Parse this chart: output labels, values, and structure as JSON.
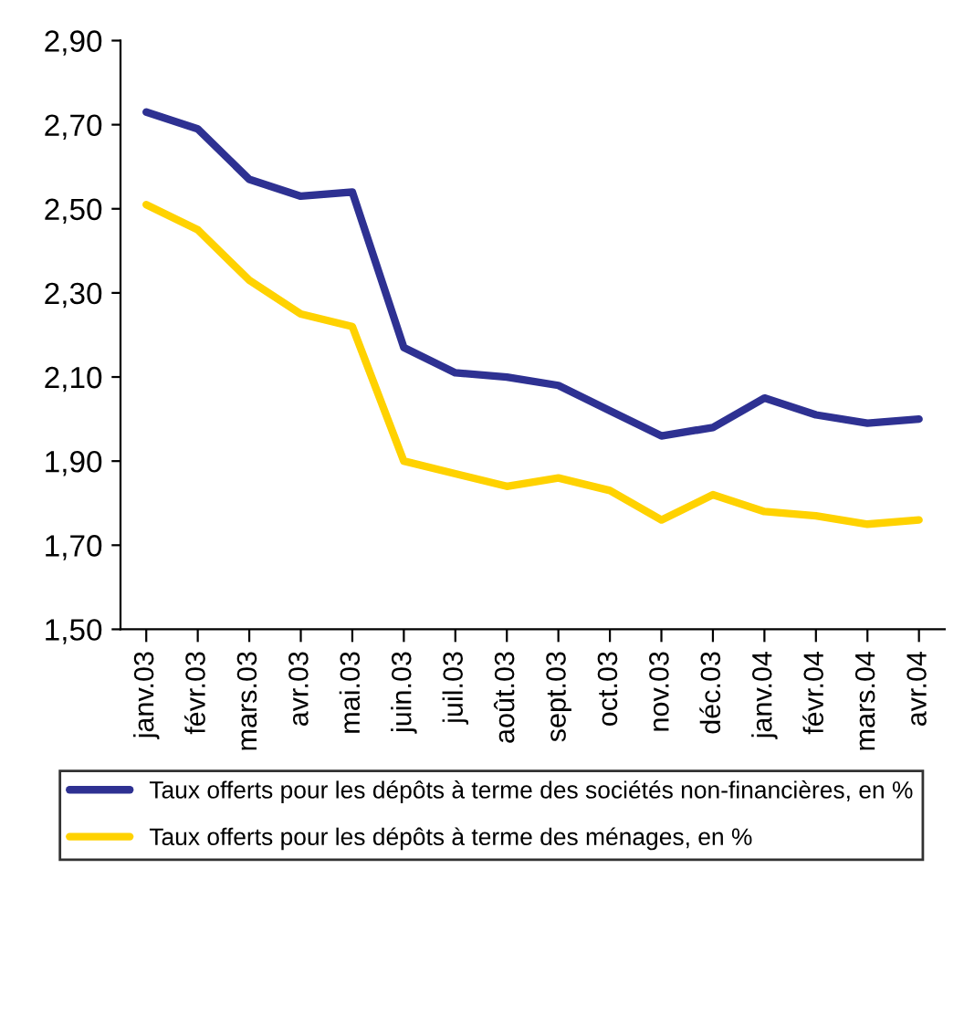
{
  "chart_data": {
    "type": "line",
    "categories": [
      "janv.03",
      "févr.03",
      "mars.03",
      "avr.03",
      "mai.03",
      "juin.03",
      "juil.03",
      "août.03",
      "sept.03",
      "oct.03",
      "nov.03",
      "déc.03",
      "janv.04",
      "févr.04",
      "mars.04",
      "avr.04"
    ],
    "series": [
      {
        "name": "Taux offerts pour les dépôts à terme des sociétés non-financières, en %",
        "color": "#2e3192",
        "values": [
          2.73,
          2.69,
          2.57,
          2.53,
          2.54,
          2.17,
          2.11,
          2.1,
          2.08,
          2.02,
          1.96,
          1.98,
          2.05,
          2.01,
          1.99,
          2.0
        ]
      },
      {
        "name": "Taux offerts pour les dépôts à terme des ménages, en %",
        "color": "#ffd200",
        "values": [
          2.51,
          2.45,
          2.33,
          2.25,
          2.22,
          1.9,
          1.87,
          1.84,
          1.86,
          1.83,
          1.76,
          1.82,
          1.78,
          1.77,
          1.75,
          1.76
        ]
      }
    ],
    "ylim": [
      1.5,
      2.9
    ],
    "yticks": [
      {
        "value": 1.5,
        "label": "1,50"
      },
      {
        "value": 1.7,
        "label": "1,70"
      },
      {
        "value": 1.9,
        "label": "1,90"
      },
      {
        "value": 2.1,
        "label": "2,10"
      },
      {
        "value": 2.3,
        "label": "2,30"
      },
      {
        "value": 2.5,
        "label": "2,50"
      },
      {
        "value": 2.7,
        "label": "2,70"
      },
      {
        "value": 2.9,
        "label": "2,90"
      }
    ],
    "grid": false,
    "legend": "bottom",
    "marker": "none",
    "line_style": "solid"
  }
}
